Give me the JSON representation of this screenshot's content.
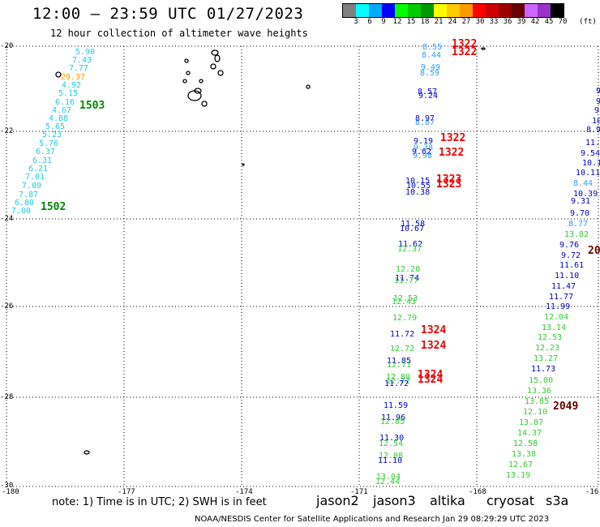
{
  "title": "12:00 — 23:59 UTC 01/27/2023",
  "subtitle": "12 hour collection of altimeter wave heights",
  "legend": {
    "unit_label": "(ft)",
    "colors": [
      "#808080",
      "#00ffff",
      "#00aaff",
      "#0000ff",
      "#00ff00",
      "#00cc00",
      "#009900",
      "#ffff00",
      "#ffcc00",
      "#ff9900",
      "#ff0000",
      "#cc0000",
      "#990000",
      "#660000",
      "#cc66ff",
      "#9933cc",
      "#000000"
    ],
    "labels": [
      "3",
      "6",
      "9",
      "12",
      "15",
      "18",
      "21",
      "24",
      "27",
      "30",
      "33",
      "36",
      "39",
      "42",
      "45",
      "70"
    ]
  },
  "axes": {
    "lon_ticks": [
      "-180",
      "-177",
      "-174",
      "-171",
      "-168",
      "-16"
    ],
    "lat_ticks": [
      "-20",
      "-22",
      "-24",
      "-26",
      "-28",
      "-30"
    ]
  },
  "satellites": {
    "jason2": {
      "label": "jason2",
      "color": "#0000cc"
    },
    "jason3": {
      "label": "jason3",
      "color": "#33cc33"
    },
    "altika": {
      "label": "altika",
      "color": "#ff9900"
    },
    "cryosat": {
      "label": "cryosat",
      "color": "#ee0000"
    },
    "s3a": {
      "label": "s3a",
      "color": "#660000"
    }
  },
  "note": "note: 1) Time is in UTC; 2) SWH is in feet",
  "credit": "NOAA/NESDIS Center for Satellite Applications and Research   Jan 29 08:29:29 UTC 2023",
  "observations": [
    {
      "v": "5.90",
      "sat": "cyan"
    },
    {
      "v": "7.43",
      "sat": "cyan"
    },
    {
      "v": "7.77",
      "sat": "cyan"
    },
    {
      "v": "29.37",
      "sat": "altika"
    },
    {
      "v": "4.92",
      "sat": "cyan"
    },
    {
      "v": "5.15",
      "sat": "cyan"
    },
    {
      "v": "6.16",
      "sat": "cyan"
    },
    {
      "v": "4.67",
      "sat": "cyan"
    },
    {
      "v": "4.88",
      "sat": "cyan"
    },
    {
      "v": "5.65",
      "sat": "cyan"
    },
    {
      "v": "5.23",
      "sat": "cyan"
    },
    {
      "v": "5.76",
      "sat": "cyan"
    },
    {
      "v": "6.37",
      "sat": "cyan"
    },
    {
      "v": "6.31",
      "sat": "cyan"
    },
    {
      "v": "6.21",
      "sat": "cyan"
    },
    {
      "v": "7.01",
      "sat": "cyan"
    },
    {
      "v": "7.09",
      "sat": "cyan"
    },
    {
      "v": "7.87",
      "sat": "cyan"
    },
    {
      "v": "6.80",
      "sat": "cyan"
    },
    {
      "v": "7.00",
      "sat": "cyan"
    },
    {
      "v": "8.55",
      "sat": "light"
    },
    {
      "v": "8.44",
      "sat": "light"
    },
    {
      "v": "9.49",
      "sat": "light"
    },
    {
      "v": "8.59",
      "sat": "light"
    },
    {
      "v": "8.57",
      "sat": "jason2"
    },
    {
      "v": "9.24",
      "sat": "jason2"
    },
    {
      "v": "8.97",
      "sat": "jason2"
    },
    {
      "v": "8.87",
      "sat": "light"
    },
    {
      "v": "9.19",
      "sat": "jason2"
    },
    {
      "v": "9.38",
      "sat": "light"
    },
    {
      "v": "9.62",
      "sat": "jason2"
    },
    {
      "v": "9.98",
      "sat": "light"
    },
    {
      "v": "10.15",
      "sat": "jason2"
    },
    {
      "v": "10.55",
      "sat": "jason2"
    },
    {
      "v": "10.38",
      "sat": "jason2"
    },
    {
      "v": "11.58",
      "sat": "jason2"
    },
    {
      "v": "10.67",
      "sat": "jason2"
    },
    {
      "v": "11.62",
      "sat": "jason2"
    },
    {
      "v": "12.37",
      "sat": "jason3"
    },
    {
      "v": "12.20",
      "sat": "jason3"
    },
    {
      "v": "11.74",
      "sat": "jason2"
    },
    {
      "v": "11.77",
      "sat": "jason3"
    },
    {
      "v": "12.53",
      "sat": "jason3"
    },
    {
      "v": "12.43",
      "sat": "jason3"
    },
    {
      "v": "12.79",
      "sat": "jason3"
    },
    {
      "v": "11.72",
      "sat": "jason2"
    },
    {
      "v": "12.72",
      "sat": "jason3"
    },
    {
      "v": "11.85",
      "sat": "jason2"
    },
    {
      "v": "12.71",
      "sat": "jason3"
    },
    {
      "v": "12.80",
      "sat": "jason3"
    },
    {
      "v": "12.72",
      "sat": "jason3"
    },
    {
      "v": "11.72",
      "sat": "jason2"
    },
    {
      "v": "11.59",
      "sat": "jason2"
    },
    {
      "v": "11.96",
      "sat": "jason2"
    },
    {
      "v": "12.85",
      "sat": "jason3"
    },
    {
      "v": "11.30",
      "sat": "jason2"
    },
    {
      "v": "12.54",
      "sat": "jason3"
    },
    {
      "v": "12.08",
      "sat": "jason3"
    },
    {
      "v": "11.10",
      "sat": "jason2"
    },
    {
      "v": "13.04",
      "sat": "jason3"
    },
    {
      "v": "12.44",
      "sat": "jason3"
    },
    {
      "v": "9.",
      "sat": "jason2"
    },
    {
      "v": "9.",
      "sat": "jason2"
    },
    {
      "v": "9.",
      "sat": "jason2"
    },
    {
      "v": "10.",
      "sat": "jason2"
    },
    {
      "v": "8.9",
      "sat": "jason2"
    },
    {
      "v": "11.9",
      "sat": "jason2"
    },
    {
      "v": "9.54",
      "sat": "jason2"
    },
    {
      "v": "10.17",
      "sat": "jason2"
    },
    {
      "v": "10.11",
      "sat": "jason2"
    },
    {
      "v": "8.44",
      "sat": "light"
    },
    {
      "v": "10.39",
      "sat": "jason2"
    },
    {
      "v": "9.31",
      "sat": "jason2"
    },
    {
      "v": "9.70",
      "sat": "jason2"
    },
    {
      "v": "8.77",
      "sat": "light"
    },
    {
      "v": "13.82",
      "sat": "jason3"
    },
    {
      "v": "9.76",
      "sat": "jason2"
    },
    {
      "v": "9.72",
      "sat": "jason2"
    },
    {
      "v": "11.61",
      "sat": "jason2"
    },
    {
      "v": "11.10",
      "sat": "jason2"
    },
    {
      "v": "11.47",
      "sat": "jason2"
    },
    {
      "v": "11.77",
      "sat": "jason2"
    },
    {
      "v": "11.99",
      "sat": "jason2"
    },
    {
      "v": "12.04",
      "sat": "jason3"
    },
    {
      "v": "13.14",
      "sat": "jason3"
    },
    {
      "v": "12.53",
      "sat": "jason3"
    },
    {
      "v": "12.23",
      "sat": "jason3"
    },
    {
      "v": "13.27",
      "sat": "jason3"
    },
    {
      "v": "11.73",
      "sat": "jason2"
    },
    {
      "v": "15.00",
      "sat": "jason3"
    },
    {
      "v": "13.36",
      "sat": "jason3"
    },
    {
      "v": "13.85",
      "sat": "jason3"
    },
    {
      "v": "12.10",
      "sat": "jason3"
    },
    {
      "v": "13.87",
      "sat": "jason3"
    },
    {
      "v": "14.37",
      "sat": "jason3"
    },
    {
      "v": "12.58",
      "sat": "jason3"
    },
    {
      "v": "13.38",
      "sat": "jason3"
    },
    {
      "v": "12.67",
      "sat": "jason3"
    },
    {
      "v": "13.19",
      "sat": "jason3"
    }
  ],
  "labels": [
    {
      "t": "1503",
      "sat": "green"
    },
    {
      "t": "1502",
      "sat": "green"
    },
    {
      "t": "1322",
      "sat": "cryosat"
    },
    {
      "t": "1322",
      "sat": "cryosat"
    },
    {
      "t": "1322",
      "sat": "cryosat"
    },
    {
      "t": "1322",
      "sat": "cryosat"
    },
    {
      "t": "1323",
      "sat": "cryosat"
    },
    {
      "t": "1323",
      "sat": "cryosat"
    },
    {
      "t": "1324",
      "sat": "cryosat"
    },
    {
      "t": "1324",
      "sat": "cryosat"
    },
    {
      "t": "1324",
      "sat": "cryosat"
    },
    {
      "t": "1324",
      "sat": "cryosat"
    },
    {
      "t": "2049",
      "sat": "s3a"
    },
    {
      "t": "20",
      "sat": "s3a"
    }
  ]
}
